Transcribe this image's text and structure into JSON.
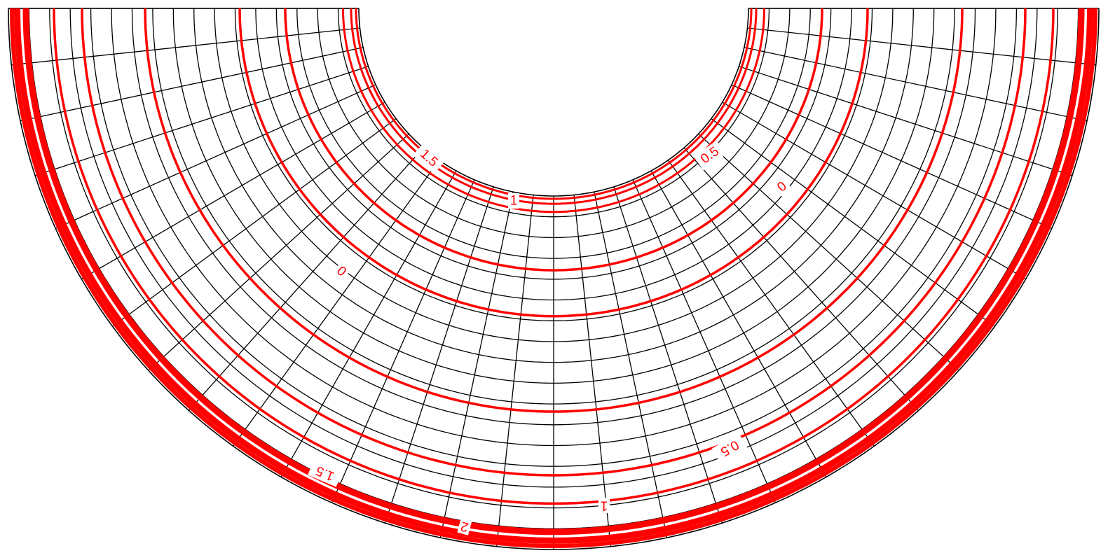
{
  "diagram": {
    "type": "contour plot on semicircular annulus grid",
    "colors": {
      "background": "#ffffff",
      "grid": "#000000",
      "contour": "#ff0000",
      "label_background": "#ffffff"
    },
    "grid": {
      "radial_divisions": 30,
      "ring_divisions": 17
    },
    "contours": [
      {
        "level": "0",
        "frac": 0.21
      },
      {
        "level": "0",
        "frac": 0.34
      },
      {
        "level": "0.5",
        "frac": 0.045
      },
      {
        "level": "0.5",
        "frac": 0.61
      },
      {
        "level": "1",
        "frac": 0.022
      },
      {
        "level": "1",
        "frac": 0.79
      },
      {
        "level": "1.5",
        "frac": 0.008
      },
      {
        "level": "1.5",
        "frac": 0.87
      },
      {
        "level": "2",
        "frac": 0.95
      },
      {
        "level": "2",
        "frac": 0.975
      }
    ],
    "labels": [
      {
        "id": "label-0-a",
        "text": "0"
      },
      {
        "id": "label-0-b",
        "text": "0"
      },
      {
        "id": "label-05-a",
        "text": "0.5"
      },
      {
        "id": "label-05-b",
        "text": "0.5"
      },
      {
        "id": "label-1-a",
        "text": "1"
      },
      {
        "id": "label-1-b",
        "text": "1"
      },
      {
        "id": "label-15-a",
        "text": "1.5"
      },
      {
        "id": "label-15-b",
        "text": "1.5"
      },
      {
        "id": "label-2",
        "text": "2"
      }
    ]
  }
}
